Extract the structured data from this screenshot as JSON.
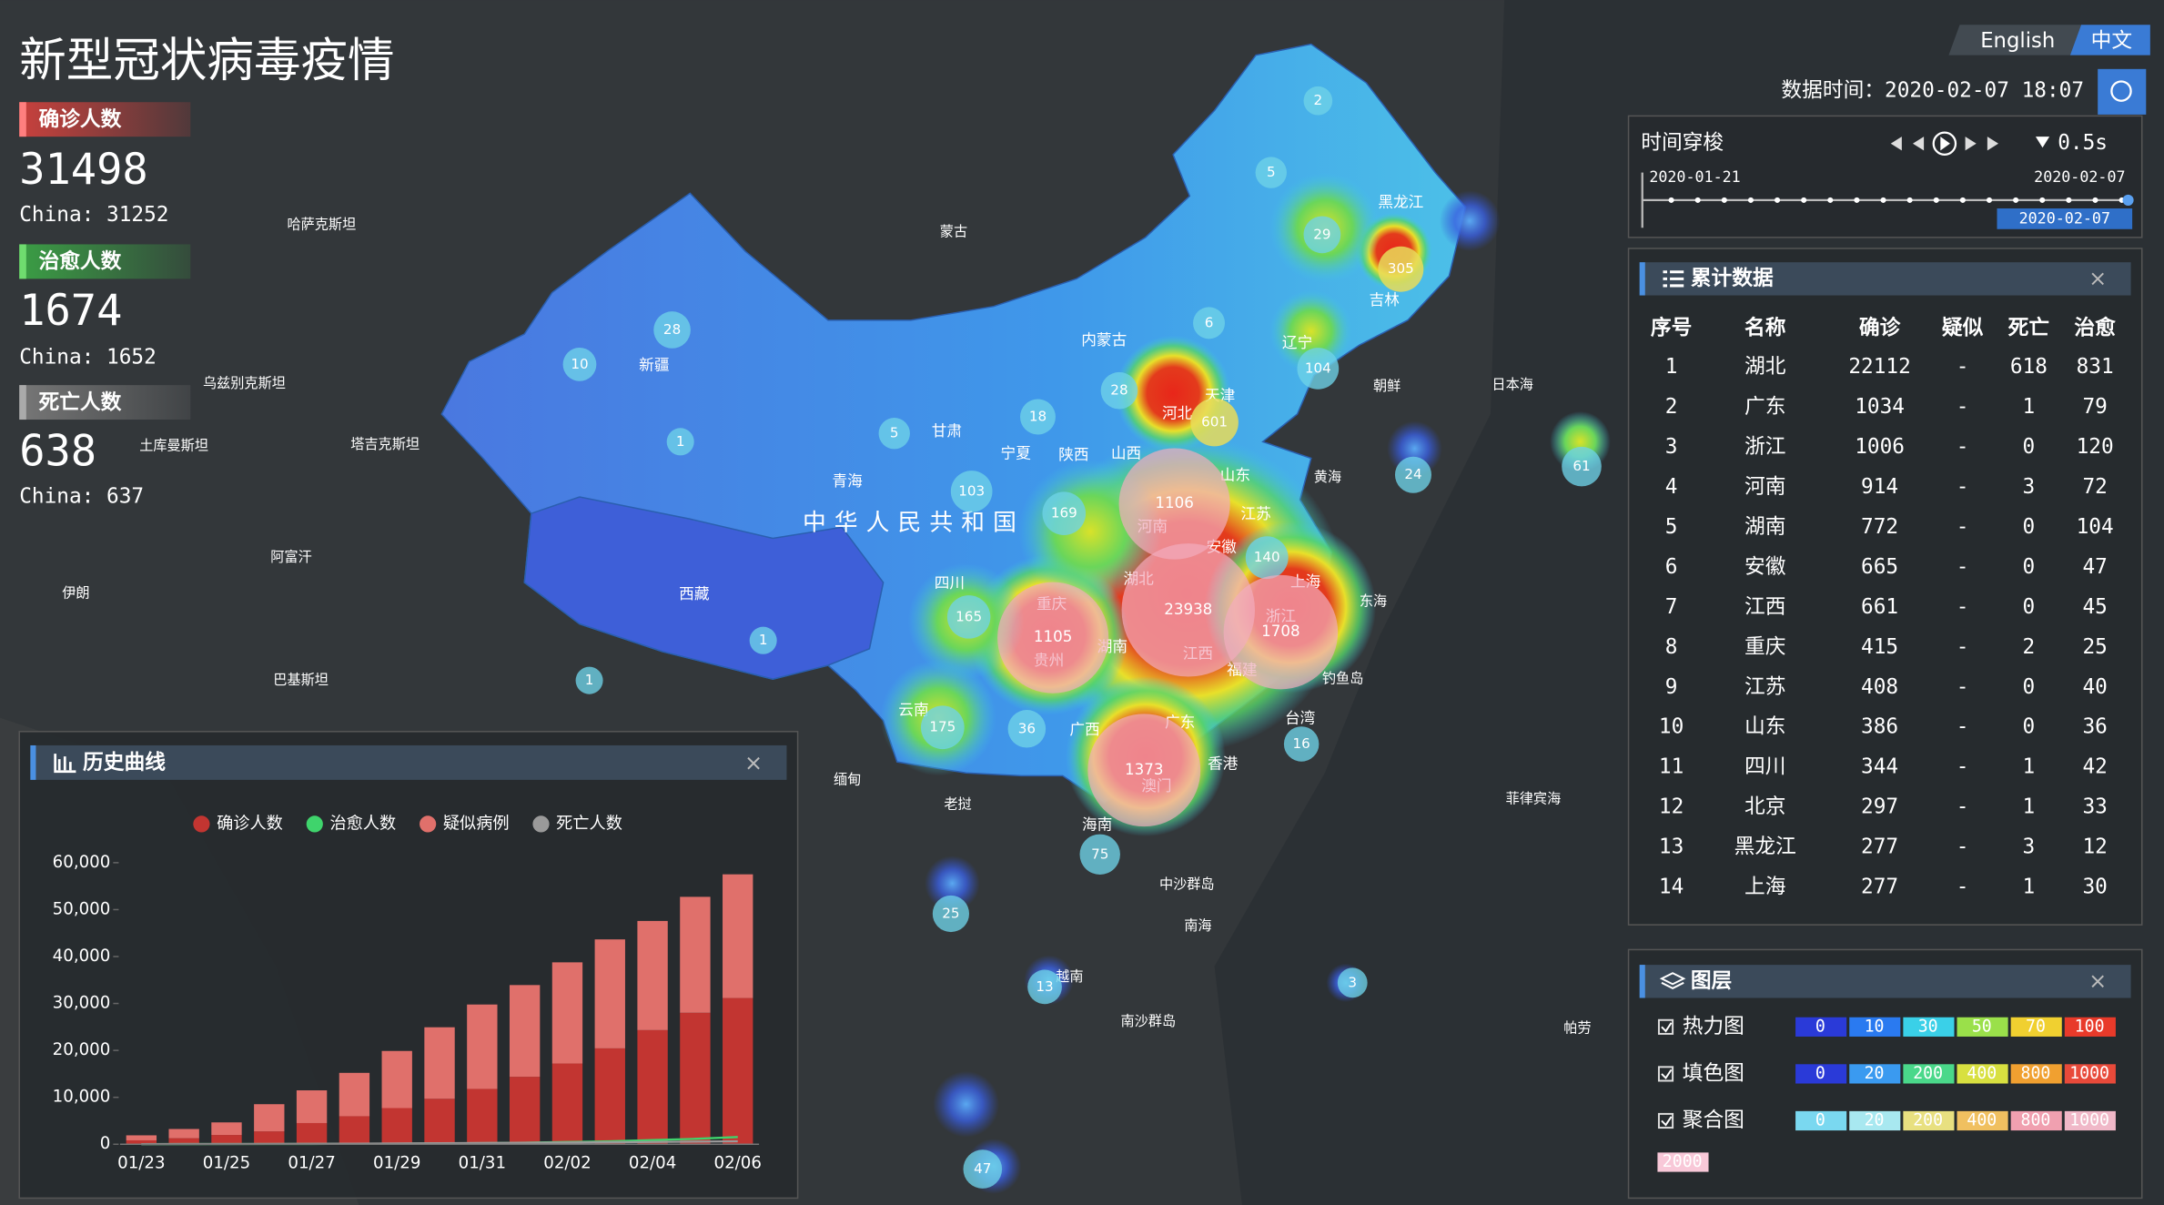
{
  "header": {
    "title": "新型冠状病毒疫情",
    "languages": [
      "English",
      "中文"
    ],
    "data_time": "数据时间：2020-02-07 18:07"
  },
  "stats": [
    {
      "label": "确诊人数",
      "value": 31498,
      "china": "China: 31252"
    },
    {
      "label": "治愈人数",
      "value": 1674,
      "china": "China: 1652"
    },
    {
      "label": "死亡人数",
      "value": 638,
      "china": "China: 637"
    }
  ],
  "timeline": {
    "title": "时间穿梭",
    "speed": "0.5s",
    "start": "2020-01-21",
    "end": "2020-02-07",
    "current": "2020-02-07"
  },
  "table": {
    "title": "累计数据",
    "columns": [
      "序号",
      "名称",
      "确诊",
      "疑似",
      "死亡",
      "治愈"
    ],
    "rows": [
      [
        1,
        "湖北",
        22112,
        "-",
        618,
        831
      ],
      [
        2,
        "广东",
        1034,
        "-",
        1,
        79
      ],
      [
        3,
        "浙江",
        1006,
        "-",
        0,
        120
      ],
      [
        4,
        "河南",
        914,
        "-",
        3,
        72
      ],
      [
        5,
        "湖南",
        772,
        "-",
        0,
        104
      ],
      [
        6,
        "安徽",
        665,
        "-",
        0,
        47
      ],
      [
        7,
        "江西",
        661,
        "-",
        0,
        45
      ],
      [
        8,
        "重庆",
        415,
        "-",
        2,
        25
      ],
      [
        9,
        "江苏",
        408,
        "-",
        0,
        40
      ],
      [
        10,
        "山东",
        386,
        "-",
        0,
        36
      ],
      [
        11,
        "四川",
        344,
        "-",
        1,
        42
      ],
      [
        12,
        "北京",
        297,
        "-",
        1,
        33
      ],
      [
        13,
        "黑龙江",
        277,
        "-",
        3,
        12
      ],
      [
        14,
        "上海",
        277,
        "-",
        1,
        30
      ]
    ]
  },
  "layers": {
    "title": "图层",
    "items": [
      {
        "name": "热力图",
        "breaks": [
          0,
          10,
          30,
          50,
          70,
          100
        ]
      },
      {
        "name": "填色图",
        "breaks": [
          0,
          20,
          200,
          400,
          800,
          1000
        ]
      },
      {
        "name": "聚合图",
        "breaks": [
          0,
          20,
          200,
          400,
          800,
          1000,
          2000
        ]
      }
    ]
  },
  "map": {
    "provinces": [
      "黑龙江",
      "吉林",
      "辽宁",
      "内蒙古",
      "河北",
      "天津",
      "新疆",
      "甘肃",
      "宁夏",
      "陕西",
      "山西",
      "青海",
      "山东",
      "河南",
      "江苏",
      "安徽",
      "湖北",
      "上海",
      "四川",
      "重庆",
      "西藏",
      "湖南",
      "浙江",
      "江西",
      "贵州",
      "福建",
      "云南",
      "广西",
      "广东",
      "台湾",
      "香港",
      "澳门",
      "海南"
    ],
    "country": "中华人民共和国",
    "places": [
      "蒙古",
      "哈萨克斯坦",
      "乌兹别克斯坦",
      "土库曼斯坦",
      "塔吉克斯坦",
      "阿富汗",
      "伊朗",
      "巴基斯坦",
      "缅甸",
      "老挝",
      "越南",
      "朝鲜",
      "日本海",
      "黄海",
      "东海",
      "钓鱼岛",
      "菲律宾海",
      "南海",
      "中沙群岛",
      "南沙群岛",
      "帕劳"
    ],
    "clusters": [
      2,
      5,
      29,
      305,
      28,
      10,
      1,
      5,
      18,
      28,
      6,
      104,
      601,
      24,
      61,
      103,
      169,
      1106,
      140,
      23938,
      1708,
      1105,
      165,
      1,
      1,
      175,
      36,
      16,
      1373,
      75,
      25,
      13,
      3,
      47
    ]
  },
  "chart_data": {
    "type": "bar",
    "title": "历史曲线",
    "stacked": true,
    "legend": "top",
    "categories": [
      "01/23",
      null,
      "01/25",
      null,
      "01/27",
      null,
      "01/29",
      null,
      "01/31",
      null,
      "02/02",
      null,
      "02/04",
      null,
      "02/06"
    ],
    "series": [
      {
        "name": "确诊人数",
        "type": "bar",
        "color": "#c23531",
        "values": [
          830,
          1287,
          1975,
          2744,
          4515,
          5974,
          7711,
          9692,
          11791,
          14380,
          17205,
          20438,
          24324,
          28018,
          31161
        ]
      },
      {
        "name": "治愈人数",
        "type": "line",
        "color": "#3fd46c",
        "values": [
          34,
          38,
          49,
          51,
          60,
          103,
          124,
          171,
          243,
          328,
          475,
          632,
          892,
          1153,
          1540
        ]
      },
      {
        "name": "疑似病例",
        "type": "bar",
        "color": "#e0706b",
        "values": [
          1072,
          1965,
          2684,
          5794,
          6973,
          9239,
          12167,
          15238,
          17988,
          19544,
          21558,
          23214,
          23260,
          24702,
          26359
        ]
      },
      {
        "name": "死亡人数",
        "type": "line",
        "color": "#9a9a9a",
        "values": [
          25,
          41,
          56,
          80,
          106,
          132,
          170,
          213,
          259,
          304,
          361,
          425,
          490,
          563,
          636
        ]
      }
    ],
    "ylim": [
      0,
      60000
    ],
    "yticks": [
      0,
      {
        "value": 10000,
        "label": "10,000"
      },
      {
        "value": 20000,
        "label": "20,000"
      },
      {
        "value": 30000,
        "label": "30,000"
      },
      {
        "value": 40000,
        "label": "40,000"
      },
      {
        "value": 50000,
        "label": "50,000"
      },
      {
        "value": 60000,
        "label": "60,000"
      }
    ]
  }
}
